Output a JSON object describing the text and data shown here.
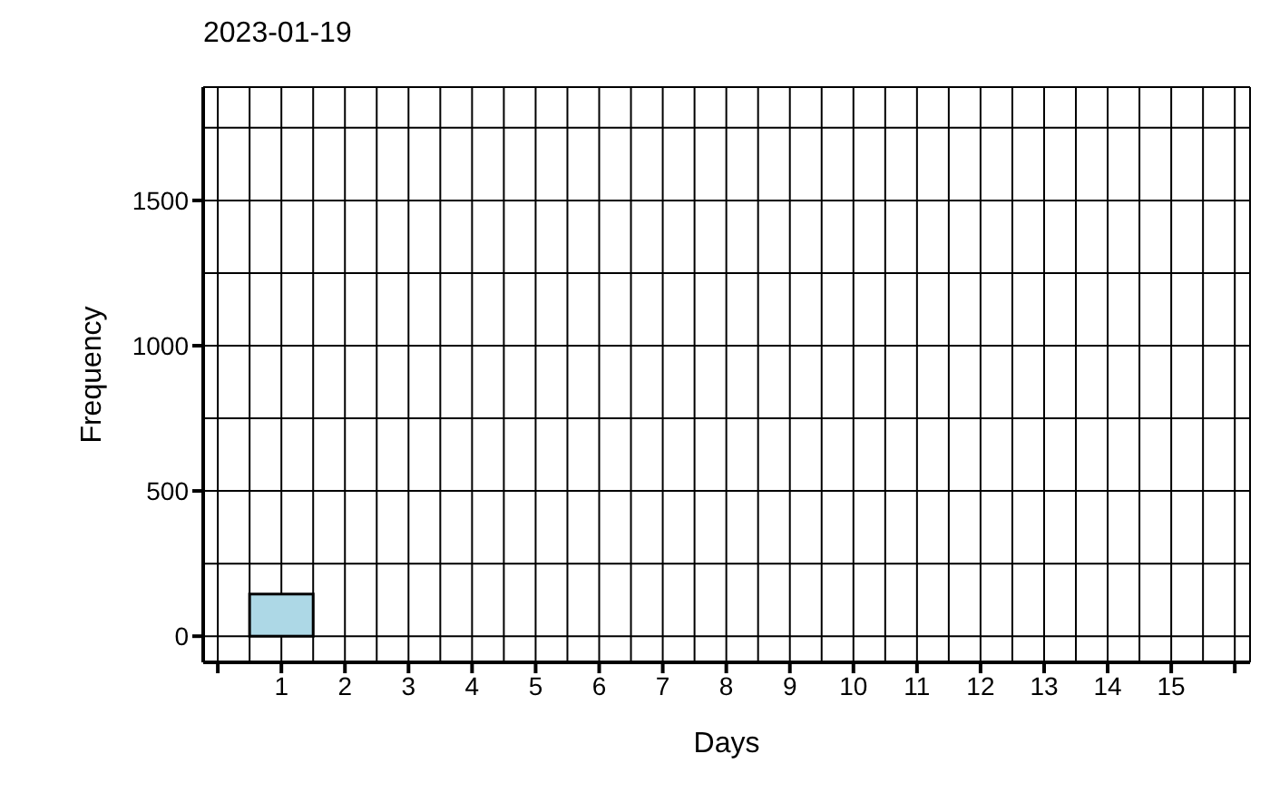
{
  "chart_data": {
    "type": "histogram",
    "title": "2023-01-19",
    "xlabel": "Days",
    "ylabel": "Frequency",
    "bins": [
      0.5,
      1.5,
      2.5,
      3.5,
      4.5,
      5.5,
      6.5,
      7.5,
      8.5,
      9.5,
      10.5,
      11.5,
      12.5,
      13.5,
      14.5,
      15.5
    ],
    "values": [
      145,
      0,
      0,
      0,
      0,
      0,
      0,
      0,
      0,
      0,
      0,
      0,
      0,
      0,
      0
    ],
    "color": "#add8e6",
    "xlim": [
      -0.23,
      16.24
    ],
    "xticks": [
      {
        "value": 0,
        "label": null
      },
      1,
      2,
      3,
      4,
      5,
      6,
      7,
      8,
      9,
      10,
      11,
      12,
      13,
      14,
      15,
      {
        "value": 16,
        "label": null
      }
    ],
    "ylim": [
      -90,
      1890
    ],
    "yticks": [
      0,
      500,
      1000,
      1500
    ],
    "grid": true
  }
}
